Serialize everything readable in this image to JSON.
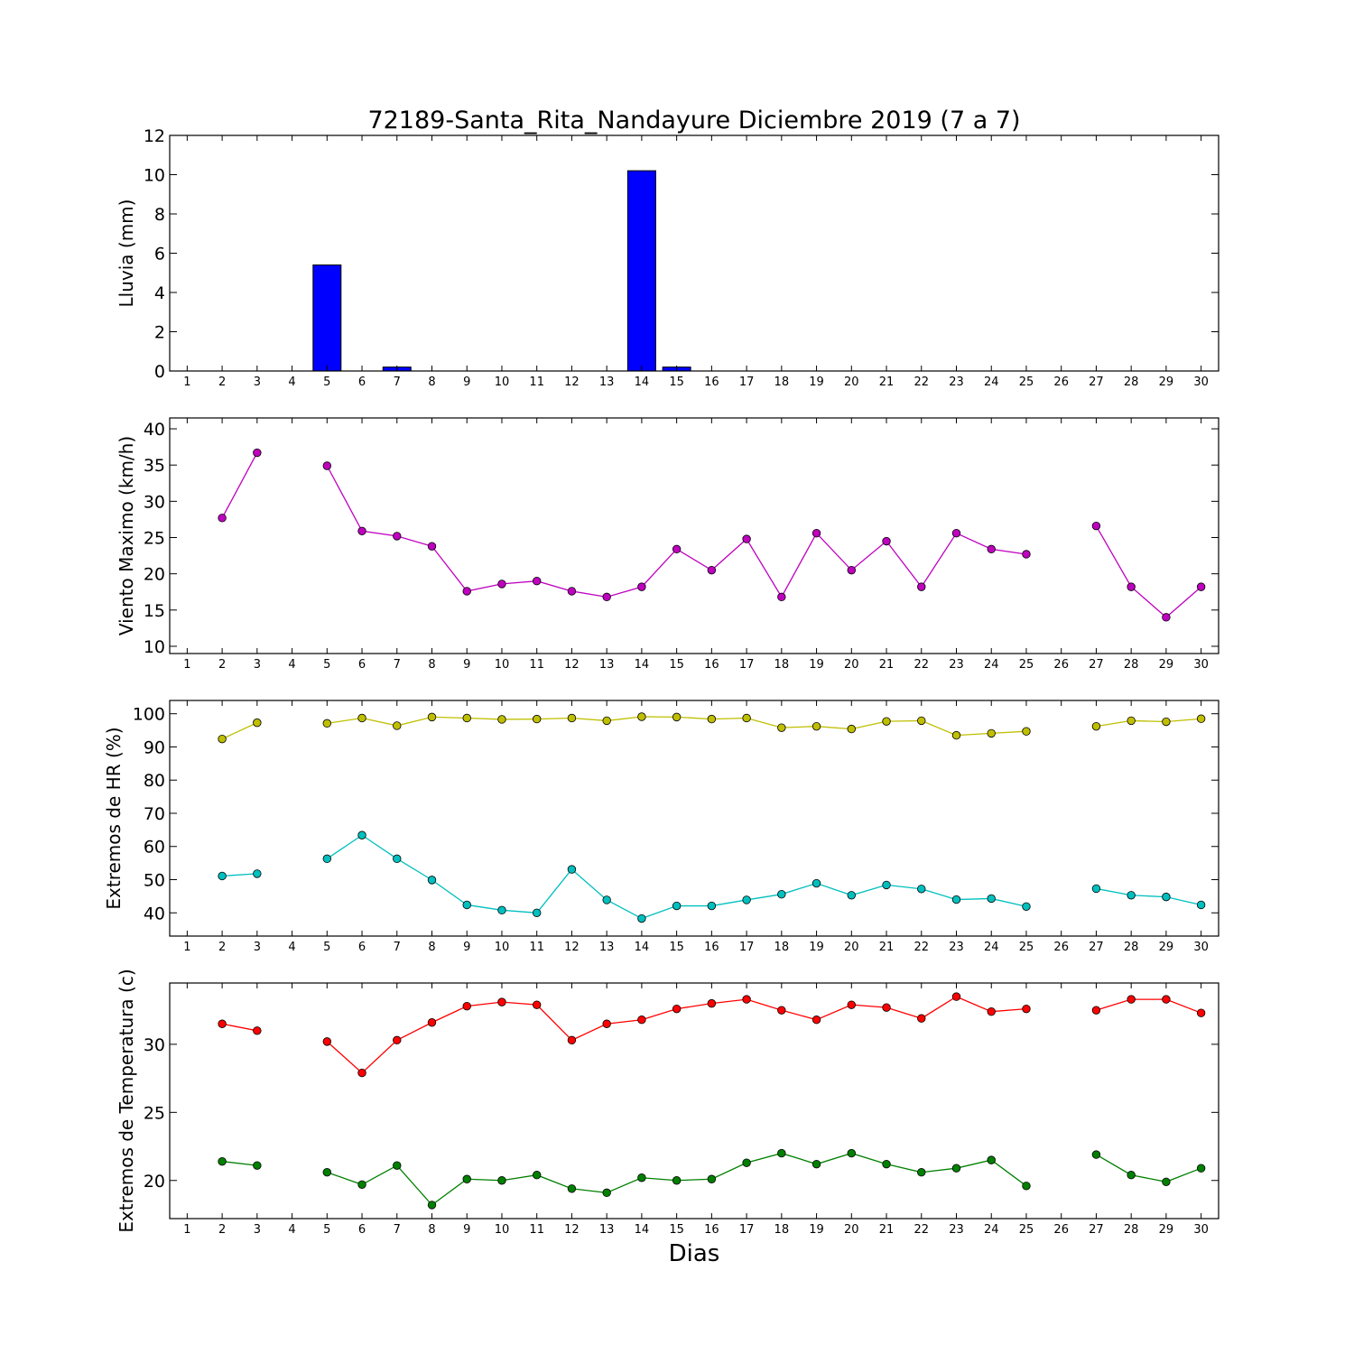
{
  "title": "72189-Santa_Rita_Nandayure Diciembre 2019  (7 a 7)",
  "xlabel": "Dias",
  "chart_data": [
    {
      "type": "bar",
      "ylabel": "Lluvia (mm)",
      "ylim": [
        0,
        12
      ],
      "yticks": [
        0,
        2,
        4,
        6,
        8,
        10,
        12
      ],
      "x": [
        1,
        2,
        3,
        4,
        5,
        6,
        7,
        8,
        9,
        10,
        11,
        12,
        13,
        14,
        15,
        16,
        17,
        18,
        19,
        20,
        21,
        22,
        23,
        24,
        25,
        26,
        27,
        28,
        29,
        30
      ],
      "series": [
        {
          "color": "#0000ff",
          "values": [
            null,
            0,
            0,
            null,
            5.4,
            0,
            0.2,
            0,
            0,
            0,
            0,
            0,
            0,
            10.2,
            0.2,
            0,
            0,
            0,
            0,
            0,
            0,
            0,
            0,
            0,
            0,
            null,
            0,
            0,
            0,
            0
          ]
        }
      ],
      "grid": false
    },
    {
      "type": "line",
      "ylabel": "Viento Maximo (km/h)",
      "ylim": [
        9,
        41.5
      ],
      "yticks": [
        10,
        15,
        20,
        25,
        30,
        35,
        40
      ],
      "x": [
        1,
        2,
        3,
        4,
        5,
        6,
        7,
        8,
        9,
        10,
        11,
        12,
        13,
        14,
        15,
        16,
        17,
        18,
        19,
        20,
        21,
        22,
        23,
        24,
        25,
        26,
        27,
        28,
        29,
        30
      ],
      "series": [
        {
          "color": "#bf00bf",
          "values": [
            null,
            27.7,
            36.7,
            null,
            34.9,
            25.9,
            25.2,
            23.8,
            17.6,
            18.6,
            19.0,
            17.6,
            16.8,
            18.2,
            23.4,
            20.5,
            24.8,
            16.8,
            25.6,
            20.5,
            24.5,
            18.2,
            25.6,
            23.4,
            22.7,
            null,
            26.6,
            18.2,
            14.0,
            18.2
          ]
        }
      ],
      "grid": false
    },
    {
      "type": "line",
      "ylabel": "Extremos de HR (%)",
      "ylim": [
        33,
        104
      ],
      "yticks": [
        40,
        50,
        60,
        70,
        80,
        90,
        100
      ],
      "x": [
        1,
        2,
        3,
        4,
        5,
        6,
        7,
        8,
        9,
        10,
        11,
        12,
        13,
        14,
        15,
        16,
        17,
        18,
        19,
        20,
        21,
        22,
        23,
        24,
        25,
        26,
        27,
        28,
        29,
        30
      ],
      "series": [
        {
          "color": "#bfbf00",
          "values": [
            null,
            92.4,
            97.3,
            null,
            97.1,
            98.7,
            96.4,
            99.0,
            98.7,
            98.3,
            98.4,
            98.7,
            97.9,
            99.1,
            99.0,
            98.4,
            98.7,
            95.8,
            96.2,
            95.4,
            97.7,
            97.9,
            93.5,
            94.1,
            94.7,
            null,
            96.2,
            97.9,
            97.6,
            98.5
          ]
        },
        {
          "color": "#00bfbf",
          "values": [
            null,
            51.1,
            51.8,
            null,
            56.3,
            63.4,
            56.3,
            49.9,
            42.4,
            40.8,
            40.0,
            53.1,
            43.9,
            38.3,
            42.1,
            42.1,
            43.9,
            45.6,
            48.9,
            45.3,
            48.4,
            47.2,
            44.0,
            44.3,
            41.9,
            null,
            47.3,
            45.3,
            44.8,
            42.4
          ]
        }
      ],
      "grid": false
    },
    {
      "type": "line",
      "ylabel": "Extremos de Temperatura (c)",
      "ylim": [
        17.2,
        34.5
      ],
      "yticks": [
        20,
        25,
        30
      ],
      "x": [
        1,
        2,
        3,
        4,
        5,
        6,
        7,
        8,
        9,
        10,
        11,
        12,
        13,
        14,
        15,
        16,
        17,
        18,
        19,
        20,
        21,
        22,
        23,
        24,
        25,
        26,
        27,
        28,
        29,
        30
      ],
      "series": [
        {
          "color": "#ff0000",
          "values": [
            null,
            31.5,
            31.0,
            null,
            30.2,
            27.9,
            30.3,
            31.6,
            32.8,
            33.1,
            32.9,
            30.3,
            31.5,
            31.8,
            32.6,
            33.0,
            33.3,
            32.5,
            31.8,
            32.9,
            32.7,
            31.9,
            33.5,
            32.4,
            32.6,
            null,
            32.5,
            33.3,
            33.3,
            32.3
          ]
        },
        {
          "color": "#008000",
          "values": [
            null,
            21.4,
            21.1,
            null,
            20.6,
            19.7,
            21.1,
            18.2,
            20.1,
            20.0,
            20.4,
            19.4,
            19.1,
            20.2,
            20.0,
            20.1,
            21.3,
            22.0,
            21.2,
            22.0,
            21.2,
            20.6,
            20.9,
            21.5,
            19.6,
            null,
            21.9,
            20.4,
            19.9,
            20.9
          ]
        }
      ],
      "grid": false
    }
  ]
}
